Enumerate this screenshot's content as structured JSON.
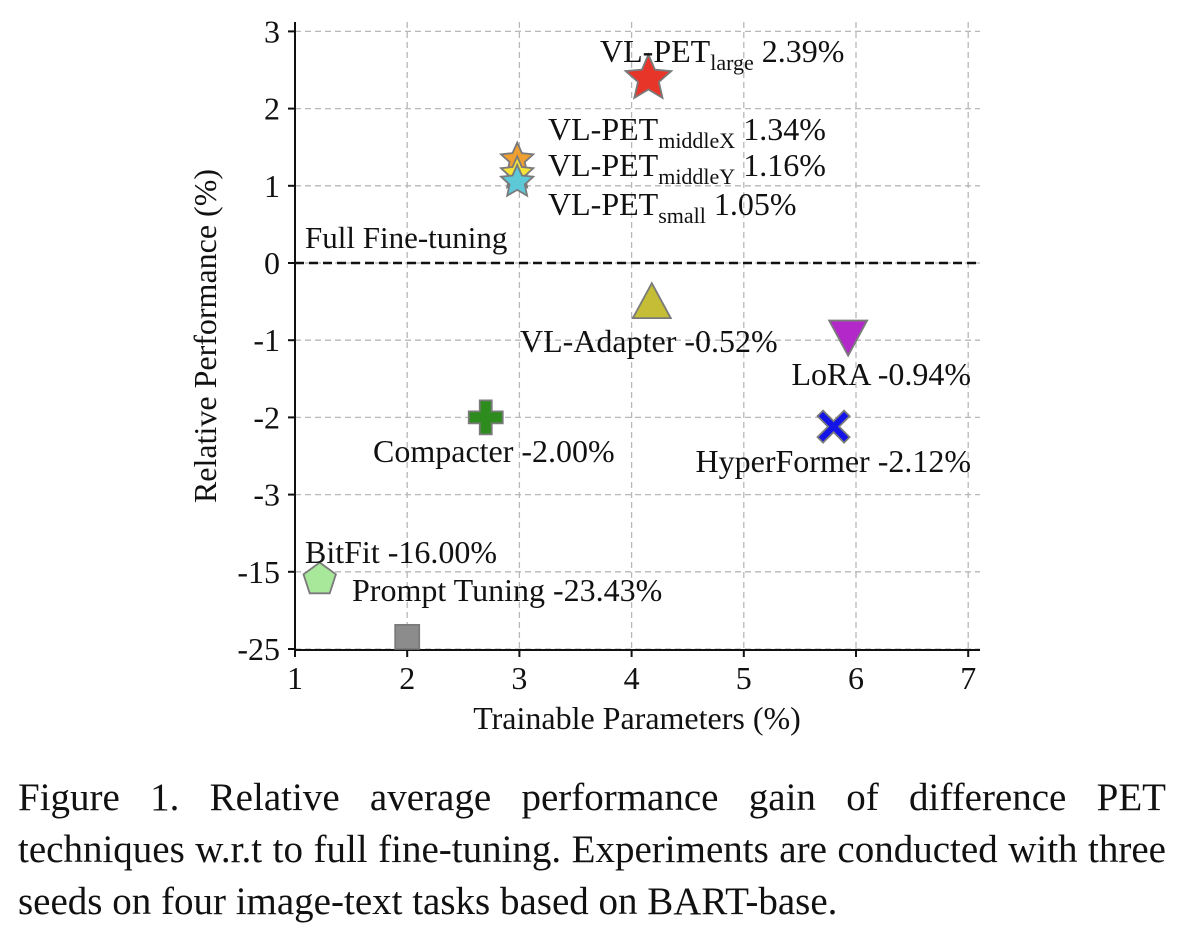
{
  "chart_data": {
    "type": "scatter",
    "xlabel": "Trainable Parameters (%)",
    "ylabel": "Relative Performance (%)",
    "xlim": [
      1,
      7
    ],
    "x_ticks": [
      "1",
      "2",
      "3",
      "4",
      "5",
      "6",
      "7"
    ],
    "y_ticks": [
      "3",
      "2",
      "1",
      "0",
      "-1",
      "-2",
      "-3",
      "-15",
      "-25"
    ],
    "y_axis_note": "broken scale below -3: ticks -15 and -25 are spaced like -4 and -5",
    "grid": true,
    "reference_line": {
      "y": 0,
      "label": "Full Fine-tuning",
      "style": "dashed"
    },
    "points": [
      {
        "name": "VL-PET_large",
        "base": "VL-PET",
        "sub": "large",
        "value": "2.39%",
        "x": 4.15,
        "y": 2.39,
        "marker": "star",
        "color": "#e8352a"
      },
      {
        "name": "VL-PET_middleX",
        "base": "VL-PET",
        "sub": "middleX",
        "value": "1.34%",
        "x": 2.98,
        "y": 1.34,
        "marker": "star",
        "color": "#f0a030"
      },
      {
        "name": "VL-PET_middleY",
        "base": "VL-PET",
        "sub": "middleY",
        "value": "1.16%",
        "x": 2.98,
        "y": 1.16,
        "marker": "star",
        "color": "#f5e33a"
      },
      {
        "name": "VL-PET_small",
        "base": "VL-PET",
        "sub": "small",
        "value": "1.05%",
        "x": 2.98,
        "y": 1.05,
        "marker": "star",
        "color": "#5cc8d8"
      },
      {
        "name": "VL-Adapter",
        "label": "VL-Adapter -0.52%",
        "x": 4.18,
        "y": -0.52,
        "marker": "triangle-up",
        "color": "#c4bd35"
      },
      {
        "name": "LoRA",
        "label": "LoRA -0.94%",
        "x": 5.93,
        "y": -0.94,
        "marker": "triangle-down",
        "color": "#b228c8"
      },
      {
        "name": "Compacter",
        "label": "Compacter -2.00%",
        "x": 2.7,
        "y": -2.0,
        "marker": "plus",
        "color": "#2e8b1e"
      },
      {
        "name": "HyperFormer",
        "label": "HyperFormer -2.12%",
        "x": 5.8,
        "y": -2.12,
        "marker": "x",
        "color": "#1414e8"
      },
      {
        "name": "BitFit",
        "label": "BitFit -16.00%",
        "x": 1.22,
        "y": -16.0,
        "marker": "pentagon",
        "color": "#a8e89a"
      },
      {
        "name": "Prompt Tuning",
        "label": "Prompt Tuning -23.43%",
        "x": 2.0,
        "y": -23.43,
        "marker": "square",
        "color": "#8c8c8c"
      }
    ]
  },
  "caption": "Figure 1. Relative average performance gain of difference PET techniques w.r.t to full fine-tuning.  Experiments are conducted with three seeds on four image-text tasks based on BART-base."
}
